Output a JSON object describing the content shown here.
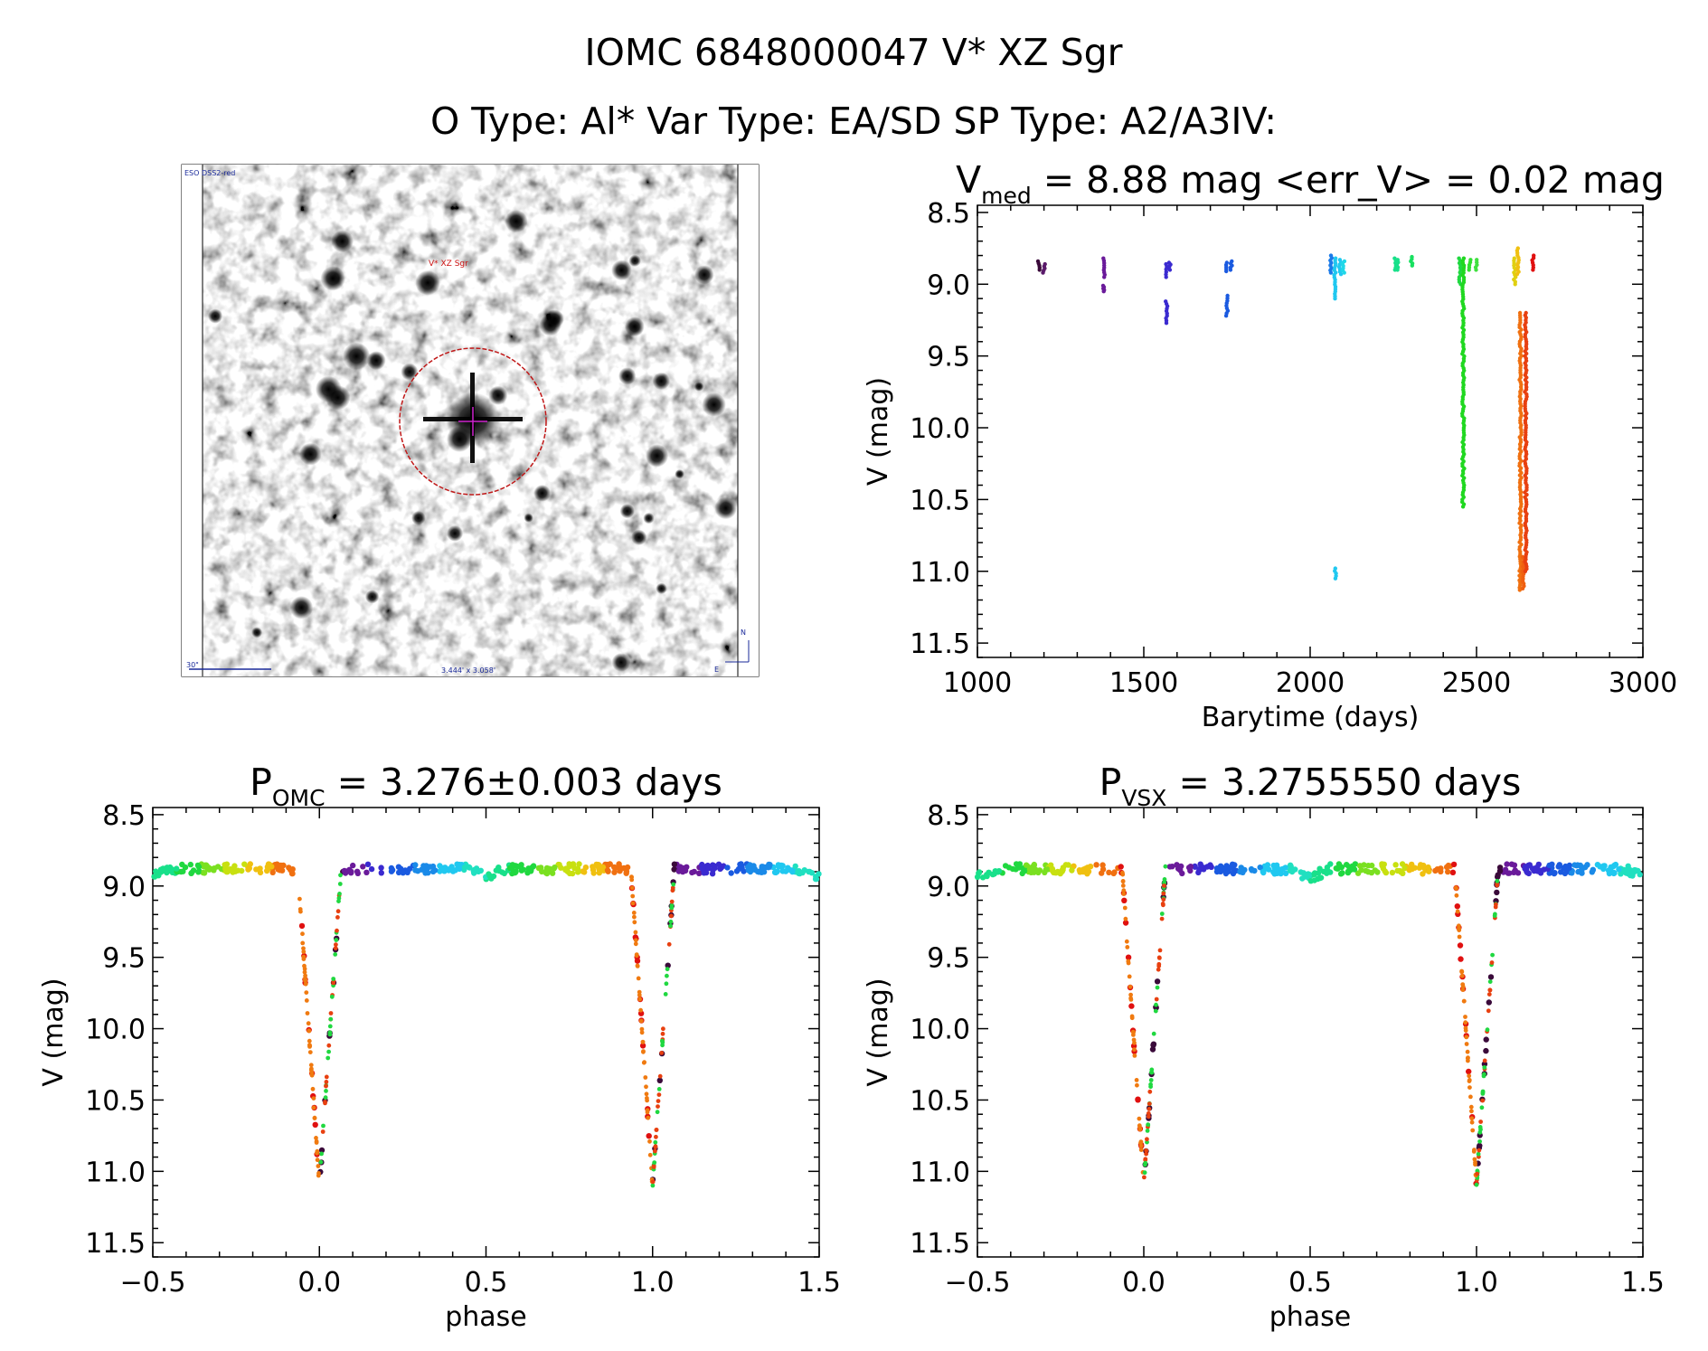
{
  "header": {
    "line1": "IOMC 6848000047   V* XZ Sgr",
    "line2": "O Type: Al*  Var Type: EA/SD  SP Type: A2/A3IV:"
  },
  "image_panel": {
    "survey_label": "ESO DSS2-red",
    "object_label": "V* XZ Sgr",
    "scale_label": "30\"",
    "fov_label": "3.444' x 3.058'",
    "north_label": "N",
    "east_label": "E"
  },
  "chart_data": [
    {
      "id": "lightcurve",
      "type": "scatter",
      "title_main": "V",
      "title_sub": "med",
      "title_rest": " = 8.88 mag <err_V> = 0.02 mag",
      "xlabel": "Barytime (days)",
      "ylabel": "V (mag)",
      "xlim": [
        1000,
        3000
      ],
      "ylim": [
        11.6,
        8.45
      ],
      "xticks": [
        1000,
        1500,
        2000,
        2500,
        3000
      ],
      "yticks": [
        8.5,
        9.0,
        9.5,
        10.0,
        10.5,
        11.0,
        11.5
      ],
      "xtick_labels": [
        "1000",
        "1500",
        "2000",
        "2500",
        "3000"
      ],
      "ytick_labels": [
        "8.5",
        "9.0",
        "9.5",
        "10.0",
        "10.5",
        "11.0",
        "11.5"
      ],
      "groups": [
        {
          "x": 1185,
          "ymin": 8.84,
          "ymax": 8.9,
          "color": "#3a0a3a"
        },
        {
          "x": 1200,
          "ymin": 8.86,
          "ymax": 8.92,
          "color": "#5a1a6a"
        },
        {
          "x": 1380,
          "ymin": 8.82,
          "ymax": 8.95,
          "color": "#6a1a9a"
        },
        {
          "x": 1380,
          "ymin": 9.01,
          "ymax": 9.05,
          "color": "#6a1a9a"
        },
        {
          "x": 1568,
          "ymin": 8.86,
          "ymax": 8.95,
          "color": "#3a2ad0"
        },
        {
          "x": 1568,
          "ymin": 9.12,
          "ymax": 9.27,
          "color": "#3a2ad0"
        },
        {
          "x": 1578,
          "ymin": 8.85,
          "ymax": 8.9,
          "color": "#3a2ad0"
        },
        {
          "x": 1750,
          "ymin": 8.85,
          "ymax": 8.91,
          "color": "#1a5ae0"
        },
        {
          "x": 1750,
          "ymin": 9.08,
          "ymax": 9.22,
          "color": "#1a5ae0"
        },
        {
          "x": 1762,
          "ymin": 8.84,
          "ymax": 8.9,
          "color": "#1a5ae0"
        },
        {
          "x": 2062,
          "ymin": 8.8,
          "ymax": 8.92,
          "color": "#1a7ae8"
        },
        {
          "x": 2075,
          "ymin": 8.82,
          "ymax": 9.1,
          "color": "#20c8f0"
        },
        {
          "x": 2075,
          "ymin": 10.98,
          "ymax": 11.05,
          "color": "#20c8f0"
        },
        {
          "x": 2090,
          "ymin": 8.83,
          "ymax": 8.93,
          "color": "#20c8f0"
        },
        {
          "x": 2100,
          "ymin": 8.84,
          "ymax": 8.92,
          "color": "#20d8e8"
        },
        {
          "x": 2255,
          "ymin": 8.82,
          "ymax": 8.9,
          "color": "#18e08a"
        },
        {
          "x": 2262,
          "ymin": 8.83,
          "ymax": 8.9,
          "color": "#18e08a"
        },
        {
          "x": 2305,
          "ymin": 8.81,
          "ymax": 8.87,
          "color": "#18e060"
        },
        {
          "x": 2450,
          "ymin": 8.82,
          "ymax": 9.0,
          "color": "#20d840"
        },
        {
          "x": 2460,
          "ymin": 8.82,
          "ymax": 10.55,
          "color": "#20d820"
        },
        {
          "x": 2480,
          "ymin": 8.83,
          "ymax": 8.9,
          "color": "#30e030"
        },
        {
          "x": 2500,
          "ymin": 8.83,
          "ymax": 8.9,
          "color": "#40e040"
        },
        {
          "x": 2615,
          "ymin": 8.82,
          "ymax": 9.0,
          "color": "#e0d010"
        },
        {
          "x": 2625,
          "ymin": 8.75,
          "ymax": 8.93,
          "color": "#f0c010"
        },
        {
          "x": 2632,
          "ymin": 9.2,
          "ymax": 11.13,
          "color": "#f07010"
        },
        {
          "x": 2640,
          "ymin": 10.9,
          "ymax": 11.12,
          "color": "#f06010"
        },
        {
          "x": 2648,
          "ymin": 9.2,
          "ymax": 11.0,
          "color": "#e84010"
        },
        {
          "x": 2670,
          "ymin": 8.8,
          "ymax": 8.9,
          "color": "#e01010"
        }
      ]
    },
    {
      "id": "fold-omc",
      "type": "scatter",
      "title_main": "P",
      "title_sub": "OMC",
      "title_rest": " = 3.276±0.003 days",
      "xlabel": "phase",
      "ylabel": "V (mag)",
      "xlim": [
        -0.5,
        1.5
      ],
      "ylim": [
        11.6,
        8.45
      ],
      "xticks": [
        -0.5,
        0.0,
        0.5,
        1.0,
        1.5
      ],
      "yticks": [
        8.5,
        9.0,
        9.5,
        10.0,
        10.5,
        11.0,
        11.5
      ],
      "xtick_labels": [
        "−0.5",
        "0.0",
        "0.5",
        "1.0",
        "1.5"
      ],
      "ytick_labels": [
        "8.5",
        "9.0",
        "9.5",
        "10.0",
        "10.5",
        "11.0",
        "11.5"
      ],
      "baseline": 8.88,
      "eclipse_depth": 11.1,
      "eclipse_width": 0.065
    },
    {
      "id": "fold-vsx",
      "type": "scatter",
      "title_main": "P",
      "title_sub": "VSX",
      "title_rest": " = 3.2755550 days",
      "xlabel": "phase",
      "ylabel": "V (mag)",
      "xlim": [
        -0.5,
        1.5
      ],
      "ylim": [
        11.6,
        8.45
      ],
      "xticks": [
        -0.5,
        0.0,
        0.5,
        1.0,
        1.5
      ],
      "yticks": [
        8.5,
        9.0,
        9.5,
        10.0,
        10.5,
        11.0,
        11.5
      ],
      "xtick_labels": [
        "−0.5",
        "0.0",
        "0.5",
        "1.0",
        "1.5"
      ],
      "ytick_labels": [
        "8.5",
        "9.0",
        "9.5",
        "10.0",
        "10.5",
        "11.0",
        "11.5"
      ],
      "baseline": 8.88,
      "eclipse_depth": 11.1,
      "eclipse_width": 0.065
    }
  ]
}
